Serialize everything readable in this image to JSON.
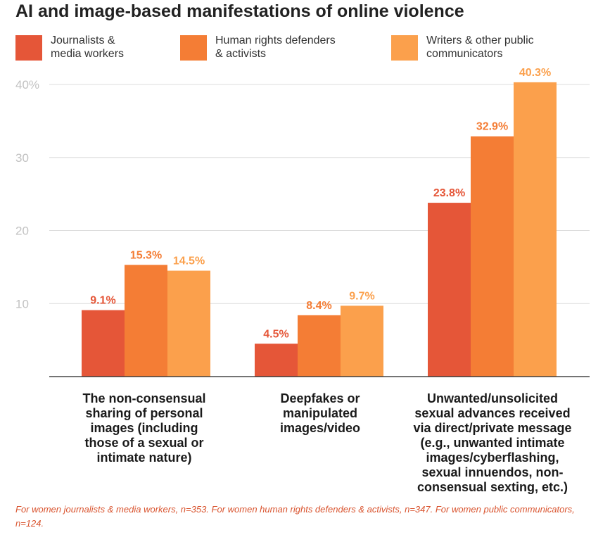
{
  "title": "AI and image-based manifestations of online violence",
  "footnote": "For women journalists & media workers, n=353. For women human rights defenders & activists, n=347. For women public communicators, n=124.",
  "chart_data": {
    "type": "bar",
    "categories": [
      "The non-consensual sharing of personal images (including those of a sexual or intimate nature)",
      "Deepfakes or manipulated images/video",
      "Unwanted/unsolicited sexual advances received via direct/private message (e.g., unwanted intimate images/cyberflashing, sexual innuendos, non-consensual sexting, etc.)"
    ],
    "category_lines": [
      [
        "The non-consensual",
        "sharing of personal",
        "images (including",
        "those of a sexual or",
        "intimate nature)"
      ],
      [
        "Deepfakes or",
        "manipulated",
        "images/video"
      ],
      [
        "Unwanted/unsolicited",
        "sexual advances received",
        "via direct/private message",
        "(e.g., unwanted intimate",
        "images/cyberflashing,",
        "sexual innuendos, non-",
        "consensual sexting, etc.)"
      ]
    ],
    "series": [
      {
        "name": "Journalists & media workers",
        "name_lines": [
          "Journalists &",
          "media workers"
        ],
        "color": "#e55638",
        "values": [
          9.1,
          4.5,
          23.8
        ],
        "labels": [
          "9.1%",
          "4.5%",
          "23.8%"
        ]
      },
      {
        "name": "Human rights defenders & activists",
        "name_lines": [
          "Human rights defenders",
          "& activists"
        ],
        "color": "#f47d35",
        "values": [
          15.3,
          8.4,
          32.9
        ],
        "labels": [
          "15.3%",
          "8.4%",
          "32.9%"
        ]
      },
      {
        "name": "Writers & other public communicators",
        "name_lines": [
          "Writers & other public",
          "communicators"
        ],
        "color": "#fba04c",
        "values": [
          14.5,
          9.7,
          40.3
        ],
        "labels": [
          "14.5%",
          "9.7%",
          "40.3%"
        ]
      }
    ],
    "ylim": [
      0,
      40
    ],
    "yticks": [
      10,
      20,
      30,
      40
    ],
    "ytick_labels": [
      "10",
      "20",
      "30",
      "40%"
    ],
    "grid": true,
    "legend_position": "top"
  }
}
